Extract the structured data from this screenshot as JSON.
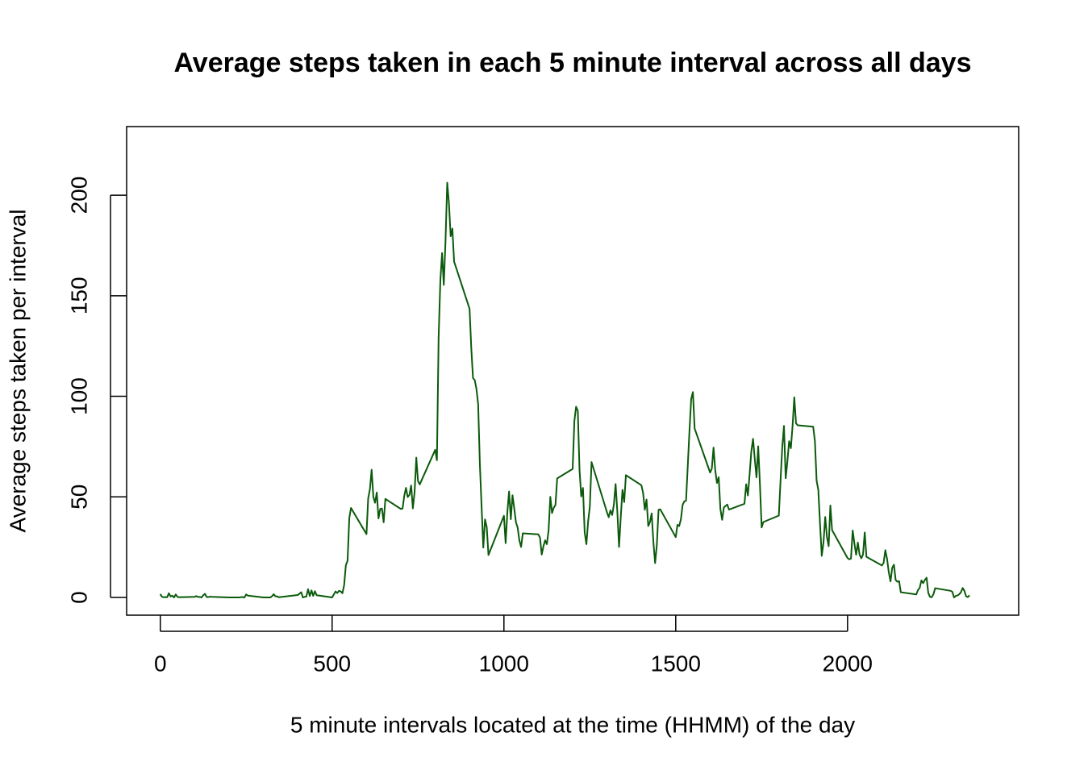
{
  "chart_data": {
    "type": "line",
    "title": "Average steps taken in each 5 minute interval across all days",
    "x_label": "5 minute intervals located at the time (HHMM) of the day",
    "y_label": "Average steps taken per interval",
    "color": "#0b5a0b",
    "xlim": [
      -98,
      2498
    ],
    "ylim": [
      -8.8,
      234.1
    ],
    "xticks": [
      0,
      500,
      1000,
      1500,
      2000
    ],
    "yticks": [
      0,
      50,
      100,
      150,
      200
    ],
    "x": [
      0,
      5,
      10,
      15,
      20,
      25,
      30,
      35,
      40,
      45,
      50,
      55,
      100,
      105,
      110,
      115,
      120,
      125,
      130,
      135,
      140,
      145,
      150,
      200,
      210,
      220,
      230,
      235,
      245,
      250,
      255,
      300,
      320,
      325,
      330,
      335,
      340,
      345,
      400,
      410,
      415,
      420,
      425,
      430,
      435,
      440,
      445,
      450,
      455,
      500,
      510,
      515,
      520,
      525,
      530,
      535,
      540,
      545,
      550,
      555,
      600,
      605,
      610,
      615,
      620,
      625,
      630,
      635,
      640,
      645,
      650,
      655,
      700,
      705,
      710,
      715,
      720,
      725,
      730,
      735,
      740,
      745,
      750,
      755,
      800,
      805,
      810,
      815,
      820,
      825,
      830,
      835,
      840,
      845,
      850,
      855,
      900,
      905,
      910,
      915,
      920,
      925,
      930,
      935,
      940,
      945,
      950,
      955,
      1000,
      1005,
      1010,
      1015,
      1020,
      1025,
      1030,
      1035,
      1040,
      1045,
      1050,
      1055,
      1100,
      1105,
      1110,
      1115,
      1120,
      1125,
      1130,
      1135,
      1140,
      1145,
      1150,
      1155,
      1200,
      1205,
      1210,
      1215,
      1220,
      1225,
      1230,
      1235,
      1240,
      1245,
      1250,
      1255,
      1300,
      1305,
      1310,
      1315,
      1320,
      1325,
      1330,
      1335,
      1340,
      1345,
      1350,
      1355,
      1400,
      1405,
      1410,
      1415,
      1420,
      1425,
      1430,
      1435,
      1440,
      1445,
      1450,
      1455,
      1500,
      1505,
      1510,
      1515,
      1520,
      1525,
      1530,
      1535,
      1540,
      1545,
      1550,
      1555,
      1600,
      1605,
      1610,
      1615,
      1620,
      1625,
      1630,
      1635,
      1640,
      1645,
      1650,
      1655,
      1700,
      1705,
      1710,
      1715,
      1720,
      1725,
      1730,
      1735,
      1740,
      1745,
      1750,
      1755,
      1800,
      1805,
      1810,
      1815,
      1820,
      1825,
      1830,
      1835,
      1840,
      1845,
      1850,
      1855,
      1900,
      1905,
      1910,
      1915,
      1920,
      1925,
      1930,
      1935,
      1940,
      1945,
      1950,
      1955,
      2000,
      2005,
      2010,
      2015,
      2020,
      2025,
      2030,
      2035,
      2040,
      2045,
      2050,
      2055,
      2100,
      2105,
      2110,
      2115,
      2120,
      2125,
      2130,
      2135,
      2140,
      2145,
      2150,
      2155,
      2200,
      2205,
      2210,
      2215,
      2220,
      2225,
      2230,
      2235,
      2240,
      2245,
      2250,
      2255,
      2300,
      2305,
      2310,
      2315,
      2320,
      2325,
      2330,
      2335,
      2340,
      2345,
      2350,
      2355
    ],
    "values": [
      1.7,
      0.3,
      0.1,
      0.2,
      0.1,
      2.1,
      0.5,
      0.9,
      0,
      1.5,
      0.3,
      0.1,
      0.3,
      0.7,
      0.2,
      0.3,
      0,
      1.1,
      1.8,
      0.2,
      0.2,
      0.4,
      0.3,
      0,
      0,
      0,
      0,
      0.2,
      0,
      1.5,
      0.9,
      0,
      0,
      0.6,
      1.6,
      0.6,
      0.5,
      0.1,
      1.2,
      2.6,
      0,
      0.3,
      0.4,
      4.1,
      0.7,
      3.5,
      0.8,
      3.1,
      1.1,
      0,
      3,
      2.2,
      3.3,
      3,
      2.1,
      6.1,
      16,
      18.3,
      39.5,
      44.5,
      31.5,
      49.3,
      53.8,
      63.5,
      50,
      47.1,
      52.2,
      39.3,
      44,
      44.2,
      37.4,
      49,
      44,
      44.2,
      50.5,
      54.5,
      49.9,
      51,
      55.7,
      44.3,
      52.3,
      69.5,
      57.8,
      56.2,
      73.4,
      68.2,
      129.4,
      157.5,
      171.2,
      155.4,
      177.3,
      206.2,
      195.9,
      179.6,
      183.4,
      167,
      143.5,
      124,
      109.1,
      108.1,
      103.7,
      96,
      66.2,
      45.2,
      24.8,
      38.8,
      35,
      21.1,
      40.6,
      27,
      42.4,
      52.7,
      38.9,
      50.8,
      44.3,
      37.4,
      34.7,
      28.3,
      25.1,
      31.9,
      31.4,
      29.7,
      21.3,
      25.5,
      28.4,
      26.5,
      33.4,
      50,
      42,
      44.6,
      46,
      59.2,
      63.9,
      87.7,
      94.8,
      92.8,
      63.4,
      50.2,
      54.5,
      32.4,
      26.5,
      37.7,
      45.1,
      67.3,
      42.3,
      39.9,
      43.3,
      41,
      46.2,
      56.4,
      42.8,
      25.1,
      40,
      53.5,
      47.4,
      60.8,
      55.8,
      52,
      43.6,
      48.7,
      35.5,
      37.5,
      41.8,
      27.5,
      17.1,
      26.1,
      43.6,
      43.8,
      30,
      36.1,
      35.5,
      38.8,
      46,
      47.8,
      48.1,
      65.3,
      82.9,
      98.7,
      102.1,
      84,
      62.1,
      64.1,
      74.5,
      63.2,
      56.9,
      59.8,
      43.9,
      38.6,
      44.7,
      45.5,
      46.2,
      43.7,
      46.6,
      56.3,
      50.7,
      61.2,
      72.7,
      78.9,
      68.9,
      59.7,
      75.1,
      56.5,
      34.8,
      37.5,
      40.7,
      58,
      74.7,
      85.3,
      59.3,
      67.8,
      77.7,
      74.2,
      85.3,
      99.5,
      86.6,
      85.6,
      84.9,
      77.8,
      58,
      53.4,
      36.3,
      20.7,
      27.4,
      40,
      30.2,
      25.5,
      45.7,
      33.5,
      19.6,
      19,
      19.3,
      33.3,
      26.8,
      21.2,
      27.3,
      21.3,
      19.5,
      21.3,
      32.3,
      20.2,
      15.9,
      17.2,
      23.5,
      19.2,
      12.5,
      8,
      14.7,
      16.3,
      8.7,
      7.8,
      8.1,
      2.6,
      1.5,
      3.7,
      4.8,
      8.5,
      7.1,
      8.7,
      9.8,
      2.2,
      0.3,
      0.1,
      1.6,
      4.6,
      3.3,
      2.8,
      0,
      0.8,
      1,
      1.6,
      2.6,
      4.7,
      3.3,
      0.6,
      0.2,
      1.1
    ]
  }
}
